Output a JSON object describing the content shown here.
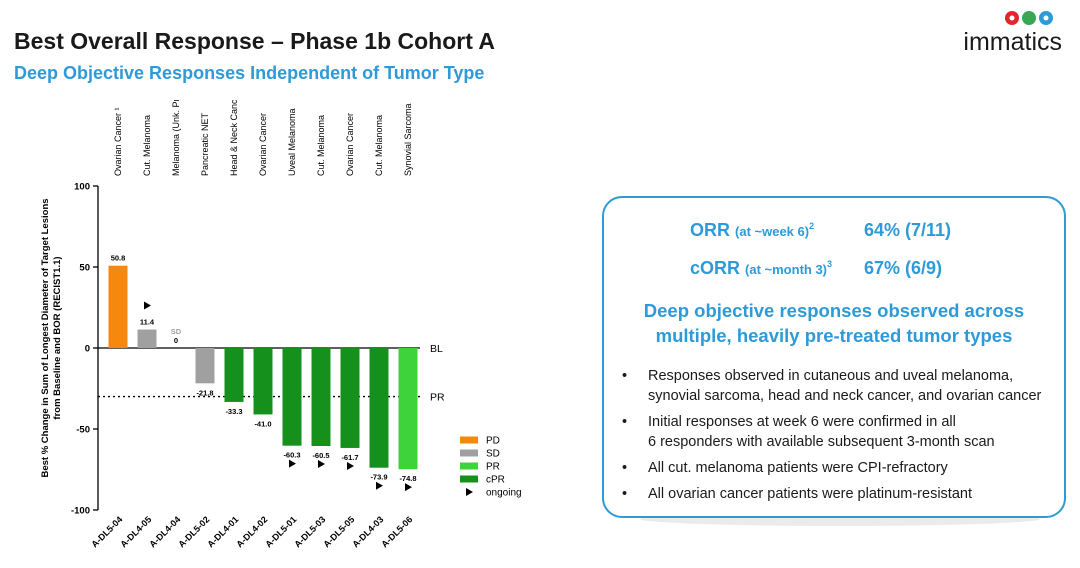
{
  "header": {
    "title": "Best Overall Response – Phase 1b Cohort A",
    "subtitle": "Deep Objective Responses Independent of Tumor Type",
    "logo_text": "immatics"
  },
  "colors": {
    "accent_blue": "#2e9ad8",
    "PD": "#f7880f",
    "SD": "#a0a0a0",
    "PR": "#3ed33b",
    "cPR": "#16901c"
  },
  "chart_data": {
    "type": "bar",
    "ylabel": "Best % Change in Sum of Longest Diameter of Target Lesions from Baseline and BOR (RECIST1.1)",
    "ylabel_lines": [
      "Best % Change in Sum of Longest Diameter of Target Lesions",
      "from Baseline and BOR (RECIST1.1)"
    ],
    "ylim": [
      -100,
      100
    ],
    "yticks": [
      100,
      50,
      0,
      -50,
      -100
    ],
    "ytick_labels": [
      "100",
      "50",
      "0",
      "-50",
      "-100"
    ],
    "categories": [
      "A-DL5-04",
      "A-DL4-05",
      "A-DL4-04",
      "A-DL5-02",
      "A-DL4-01",
      "A-DL4-02",
      "A-DL5-01",
      "A-DL5-03",
      "A-DL5-05",
      "A-DL4-03",
      "A-DL5-06"
    ],
    "tumor_types": [
      "Ovarian Cancer ¹",
      "Cut. Melanoma",
      "Melanoma (Unk. Primary)",
      "Pancreatic NET",
      "Head & Neck Cancer",
      "Ovarian Cancer",
      "Uveal Melanoma",
      "Cut. Melanoma",
      "Ovarian Cancer",
      "Cut. Melanoma",
      "Synovial Sarcoma"
    ],
    "values": [
      50.8,
      11.4,
      0,
      -21.8,
      -33.3,
      -41.0,
      -60.3,
      -60.5,
      -61.7,
      -73.9,
      -74.8
    ],
    "value_labels": [
      "50.8",
      "11.4",
      "0",
      "-21.8",
      "-33.3",
      "-41.0",
      "-60.3",
      "-60.5",
      "-61.7",
      "-73.9",
      "-74.8"
    ],
    "responses": [
      "PD",
      "SD",
      "SD",
      "SD",
      "cPR",
      "cPR",
      "cPR",
      "cPR",
      "cPR",
      "cPR",
      "PR"
    ],
    "ongoing": [
      false,
      true,
      false,
      false,
      false,
      false,
      true,
      true,
      true,
      true,
      true
    ],
    "zero_bar_label": "SD",
    "reference_lines": [
      {
        "label": "BL",
        "y": 0,
        "style": "solid"
      },
      {
        "label": "PR",
        "y": -30,
        "style": "dotted"
      }
    ],
    "legend": {
      "placement": "lower-right",
      "items": [
        {
          "label": "PD",
          "color": "#f7880f"
        },
        {
          "label": "SD",
          "color": "#a0a0a0"
        },
        {
          "label": "PR",
          "color": "#3ed33b"
        },
        {
          "label": "cPR",
          "color": "#16901c"
        },
        {
          "label": "ongoing",
          "marker": "triangle"
        }
      ]
    }
  },
  "panel": {
    "orr_label": "ORR",
    "orr_sub": "(at ~week 6)",
    "orr_sup": "2",
    "orr_value": "64% (7/11)",
    "corr_label": "cORR",
    "corr_sub": "(at ~month 3)",
    "corr_sup": "3",
    "corr_value": "67% (6/9)",
    "headline_line1": "Deep objective responses observed across",
    "headline_line2": "multiple, heavily pre-treated tumor types",
    "bullets": [
      {
        "line1": "Responses observed in cutaneous and uveal melanoma,",
        "line2": "synovial sarcoma, head and neck cancer, and ovarian cancer"
      },
      {
        "line1": "Initial responses at week 6 were confirmed in all",
        "line2": "6 responders with available subsequent 3-month scan"
      },
      {
        "line1": "All cut. melanoma patients were CPI-refractory",
        "line2": ""
      },
      {
        "line1": "All ovarian cancer patients were platinum-resistant",
        "line2": ""
      }
    ]
  }
}
